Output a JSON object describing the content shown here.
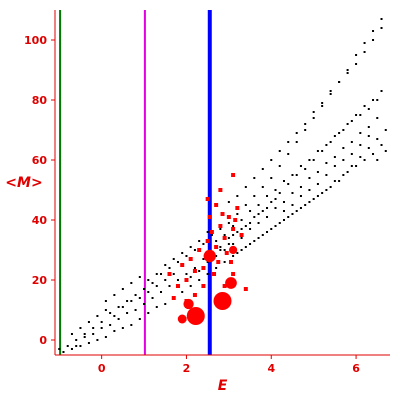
{
  "chart_data": {
    "type": "scatter",
    "title": "",
    "xlabel": "E",
    "ylabel": "<M>",
    "xlim": [
      -1.1,
      6.8
    ],
    "ylim": [
      -5,
      110
    ],
    "x_ticks": [
      0,
      2,
      4,
      6
    ],
    "y_ticks": [
      0,
      20,
      40,
      60,
      80,
      100
    ],
    "grid": false,
    "legend": "none",
    "colors": {
      "axis": "#e00000",
      "points": "#000000",
      "highlight": "#ff0000",
      "line_green": "#007a00",
      "line_magenta": "#e000e0",
      "line_blue": "#0000ff"
    },
    "vertical_lines": [
      {
        "x": -0.98,
        "color": "#007a00",
        "width": 2
      },
      {
        "x": 1.02,
        "color": "#e000e0",
        "width": 2
      },
      {
        "x": 2.55,
        "color": "#0000ff",
        "width": 4
      }
    ],
    "series": [
      {
        "color": "#000000",
        "marker": "dot",
        "points": [
          [
            -1.0,
            -3
          ],
          [
            -0.8,
            -2
          ],
          [
            -0.6,
            0
          ],
          [
            -0.4,
            2
          ],
          [
            -0.2,
            4
          ],
          [
            0.0,
            6
          ],
          [
            0.2,
            9
          ],
          [
            0.4,
            11
          ],
          [
            0.6,
            13
          ],
          [
            0.8,
            15
          ],
          [
            1.0,
            17
          ],
          [
            1.2,
            19
          ],
          [
            1.4,
            22
          ],
          [
            1.6,
            24
          ],
          [
            1.8,
            26
          ],
          [
            2.0,
            28
          ],
          [
            2.2,
            30
          ],
          [
            2.4,
            32
          ],
          [
            2.6,
            35
          ],
          [
            2.8,
            37
          ],
          [
            3.0,
            39
          ],
          [
            3.2,
            42
          ],
          [
            3.4,
            45
          ],
          [
            3.6,
            48
          ],
          [
            3.8,
            51
          ],
          [
            4.0,
            54
          ],
          [
            4.2,
            58
          ],
          [
            4.4,
            62
          ],
          [
            4.6,
            66
          ],
          [
            4.8,
            70
          ],
          [
            5.0,
            74
          ],
          [
            5.2,
            78
          ],
          [
            5.4,
            82
          ],
          [
            5.6,
            86
          ],
          [
            5.8,
            90
          ],
          [
            6.0,
            95
          ],
          [
            6.2,
            99
          ],
          [
            6.4,
            103
          ],
          [
            6.6,
            107
          ],
          [
            -0.9,
            -4
          ],
          [
            -0.7,
            -3
          ],
          [
            -0.5,
            -2
          ],
          [
            -0.3,
            -1
          ],
          [
            -0.1,
            0
          ],
          [
            0.1,
            1
          ],
          [
            0.3,
            3
          ],
          [
            0.5,
            4
          ],
          [
            0.7,
            5
          ],
          [
            0.9,
            7
          ],
          [
            1.1,
            9
          ],
          [
            1.3,
            11
          ],
          [
            1.5,
            12
          ],
          [
            1.7,
            14
          ],
          [
            1.9,
            16
          ],
          [
            2.1,
            18
          ],
          [
            2.3,
            20
          ],
          [
            2.5,
            22
          ],
          [
            2.7,
            24
          ],
          [
            2.9,
            26
          ],
          [
            3.1,
            28
          ],
          [
            3.3,
            30
          ],
          [
            3.5,
            32
          ],
          [
            3.7,
            34
          ],
          [
            3.9,
            36
          ],
          [
            4.1,
            38
          ],
          [
            4.3,
            40
          ],
          [
            4.5,
            42
          ],
          [
            4.7,
            44
          ],
          [
            4.9,
            46
          ],
          [
            5.1,
            48
          ],
          [
            5.3,
            50
          ],
          [
            5.5,
            53
          ],
          [
            5.7,
            55
          ],
          [
            5.9,
            58
          ],
          [
            6.1,
            61
          ],
          [
            6.3,
            64
          ],
          [
            6.5,
            67
          ],
          [
            6.7,
            70
          ],
          [
            -0.6,
            -2
          ],
          [
            -0.4,
            1
          ],
          [
            -0.2,
            2
          ],
          [
            0.0,
            4
          ],
          [
            0.2,
            5
          ],
          [
            0.4,
            7
          ],
          [
            0.6,
            9
          ],
          [
            0.8,
            10
          ],
          [
            1.0,
            12
          ],
          [
            1.2,
            14
          ],
          [
            1.4,
            16
          ],
          [
            1.6,
            18
          ],
          [
            1.8,
            20
          ],
          [
            2.0,
            22
          ],
          [
            2.2,
            24
          ],
          [
            2.4,
            27
          ],
          [
            2.6,
            29
          ],
          [
            2.8,
            31
          ],
          [
            3.0,
            34
          ],
          [
            3.2,
            36
          ],
          [
            3.4,
            38
          ],
          [
            3.6,
            41
          ],
          [
            3.8,
            43
          ],
          [
            4.0,
            46
          ],
          [
            4.2,
            49
          ],
          [
            4.4,
            52
          ],
          [
            4.6,
            55
          ],
          [
            4.8,
            57
          ],
          [
            5.0,
            60
          ],
          [
            5.2,
            63
          ],
          [
            5.4,
            66
          ],
          [
            5.6,
            69
          ],
          [
            5.8,
            72
          ],
          [
            6.0,
            75
          ],
          [
            6.2,
            78
          ],
          [
            6.4,
            80
          ],
          [
            6.6,
            83
          ],
          [
            0.1,
            13
          ],
          [
            0.3,
            15
          ],
          [
            0.5,
            17
          ],
          [
            0.7,
            19
          ],
          [
            0.9,
            21
          ],
          [
            1.1,
            16
          ],
          [
            1.3,
            18
          ],
          [
            1.5,
            20
          ],
          [
            1.7,
            22
          ],
          [
            1.9,
            25
          ],
          [
            2.1,
            21
          ],
          [
            2.3,
            23
          ],
          [
            2.5,
            26
          ],
          [
            2.7,
            28
          ],
          [
            2.9,
            30
          ],
          [
            3.1,
            32
          ],
          [
            3.3,
            34
          ],
          [
            3.5,
            37
          ],
          [
            3.7,
            39
          ],
          [
            3.9,
            41
          ],
          [
            4.1,
            44
          ],
          [
            4.3,
            46
          ],
          [
            4.5,
            49
          ],
          [
            4.7,
            51
          ],
          [
            4.9,
            54
          ],
          [
            5.1,
            56
          ],
          [
            5.3,
            59
          ],
          [
            5.5,
            61
          ],
          [
            5.7,
            64
          ],
          [
            5.9,
            66
          ],
          [
            6.1,
            69
          ],
          [
            6.3,
            71
          ],
          [
            6.5,
            74
          ],
          [
            -0.7,
            2
          ],
          [
            -0.5,
            4
          ],
          [
            -0.3,
            6
          ],
          [
            -0.1,
            8
          ],
          [
            0.1,
            10
          ],
          [
            0.3,
            8
          ],
          [
            0.5,
            11
          ],
          [
            0.7,
            13
          ],
          [
            0.9,
            14
          ],
          [
            1.1,
            20
          ],
          [
            1.3,
            22
          ],
          [
            1.5,
            25
          ],
          [
            1.7,
            27
          ],
          [
            1.9,
            29
          ],
          [
            2.1,
            31
          ],
          [
            2.3,
            33
          ],
          [
            2.5,
            36
          ],
          [
            2.7,
            33
          ],
          [
            2.9,
            35
          ],
          [
            3.1,
            38
          ],
          [
            3.3,
            40
          ],
          [
            3.5,
            43
          ],
          [
            3.7,
            45
          ],
          [
            3.9,
            48
          ],
          [
            4.1,
            50
          ],
          [
            4.3,
            53
          ],
          [
            4.5,
            55
          ],
          [
            4.7,
            58
          ],
          [
            4.9,
            60
          ],
          [
            5.1,
            63
          ],
          [
            5.3,
            65
          ],
          [
            5.5,
            68
          ],
          [
            5.7,
            70
          ],
          [
            5.9,
            73
          ],
          [
            6.1,
            75
          ],
          [
            6.3,
            77
          ],
          [
            6.5,
            80
          ],
          [
            3.0,
            46
          ],
          [
            3.2,
            48
          ],
          [
            3.4,
            51
          ],
          [
            3.6,
            54
          ],
          [
            3.8,
            57
          ],
          [
            4.0,
            60
          ],
          [
            4.2,
            63
          ],
          [
            4.4,
            66
          ],
          [
            4.6,
            69
          ],
          [
            4.8,
            72
          ],
          [
            5.0,
            76
          ],
          [
            5.2,
            79
          ],
          [
            5.4,
            83
          ],
          [
            5.6,
            86
          ],
          [
            5.8,
            89
          ],
          [
            6.0,
            92
          ],
          [
            6.2,
            96
          ],
          [
            6.4,
            100
          ],
          [
            6.6,
            104
          ],
          [
            3.1,
            35
          ],
          [
            3.3,
            37
          ],
          [
            3.5,
            39
          ],
          [
            3.7,
            42
          ],
          [
            3.9,
            44
          ],
          [
            4.1,
            47
          ],
          [
            4.3,
            43
          ],
          [
            4.5,
            45
          ],
          [
            4.7,
            48
          ],
          [
            4.9,
            50
          ],
          [
            5.1,
            52
          ],
          [
            5.3,
            55
          ],
          [
            5.5,
            58
          ],
          [
            5.7,
            60
          ],
          [
            5.9,
            62
          ],
          [
            6.1,
            65
          ],
          [
            6.3,
            68
          ],
          [
            6.5,
            60
          ],
          [
            6.7,
            63
          ],
          [
            2.6,
            28
          ],
          [
            2.8,
            30
          ],
          [
            3.0,
            32
          ],
          [
            3.2,
            29
          ],
          [
            3.4,
            31
          ],
          [
            3.6,
            33
          ],
          [
            3.8,
            35
          ],
          [
            4.0,
            37
          ],
          [
            4.2,
            39
          ],
          [
            4.4,
            41
          ],
          [
            4.6,
            43
          ],
          [
            4.8,
            45
          ],
          [
            5.0,
            47
          ],
          [
            5.2,
            49
          ],
          [
            5.4,
            51
          ],
          [
            5.6,
            53
          ],
          [
            5.8,
            56
          ],
          [
            6.0,
            58
          ],
          [
            6.2,
            60
          ],
          [
            6.4,
            62
          ],
          [
            6.6,
            65
          ]
        ]
      },
      {
        "color": "#ff0000",
        "marker": "square",
        "points": [
          [
            1.6,
            22
          ],
          [
            1.8,
            18
          ],
          [
            1.9,
            25
          ],
          [
            2.0,
            20
          ],
          [
            2.1,
            27
          ],
          [
            2.2,
            23
          ],
          [
            2.3,
            30
          ],
          [
            2.4,
            24
          ],
          [
            2.5,
            33
          ],
          [
            2.6,
            36
          ],
          [
            2.7,
            31
          ],
          [
            2.8,
            38
          ],
          [
            2.9,
            34
          ],
          [
            3.0,
            41
          ],
          [
            3.1,
            37
          ],
          [
            3.2,
            44
          ],
          [
            2.85,
            42
          ],
          [
            2.95,
            29
          ],
          [
            3.05,
            26
          ],
          [
            2.75,
            26
          ],
          [
            2.65,
            22
          ],
          [
            2.4,
            18
          ],
          [
            2.2,
            15
          ],
          [
            2.0,
            13
          ],
          [
            1.7,
            14
          ],
          [
            2.9,
            18
          ],
          [
            3.1,
            22
          ],
          [
            3.3,
            35
          ],
          [
            3.4,
            17
          ],
          [
            3.15,
            40
          ],
          [
            2.55,
            41
          ],
          [
            2.7,
            45
          ],
          [
            2.5,
            47
          ],
          [
            2.8,
            50
          ],
          [
            3.1,
            55
          ],
          [
            2.3,
            9
          ],
          [
            1.95,
            7
          ]
        ]
      },
      {
        "color": "#ff0000",
        "marker": "circle-large",
        "points": [
          [
            2.22,
            8,
            1.0
          ],
          [
            2.85,
            13,
            1.0
          ],
          [
            2.55,
            28,
            0.6
          ],
          [
            3.05,
            19,
            0.55
          ],
          [
            2.05,
            12,
            0.45
          ],
          [
            1.9,
            7,
            0.35
          ],
          [
            3.1,
            30,
            0.3
          ]
        ]
      }
    ]
  }
}
